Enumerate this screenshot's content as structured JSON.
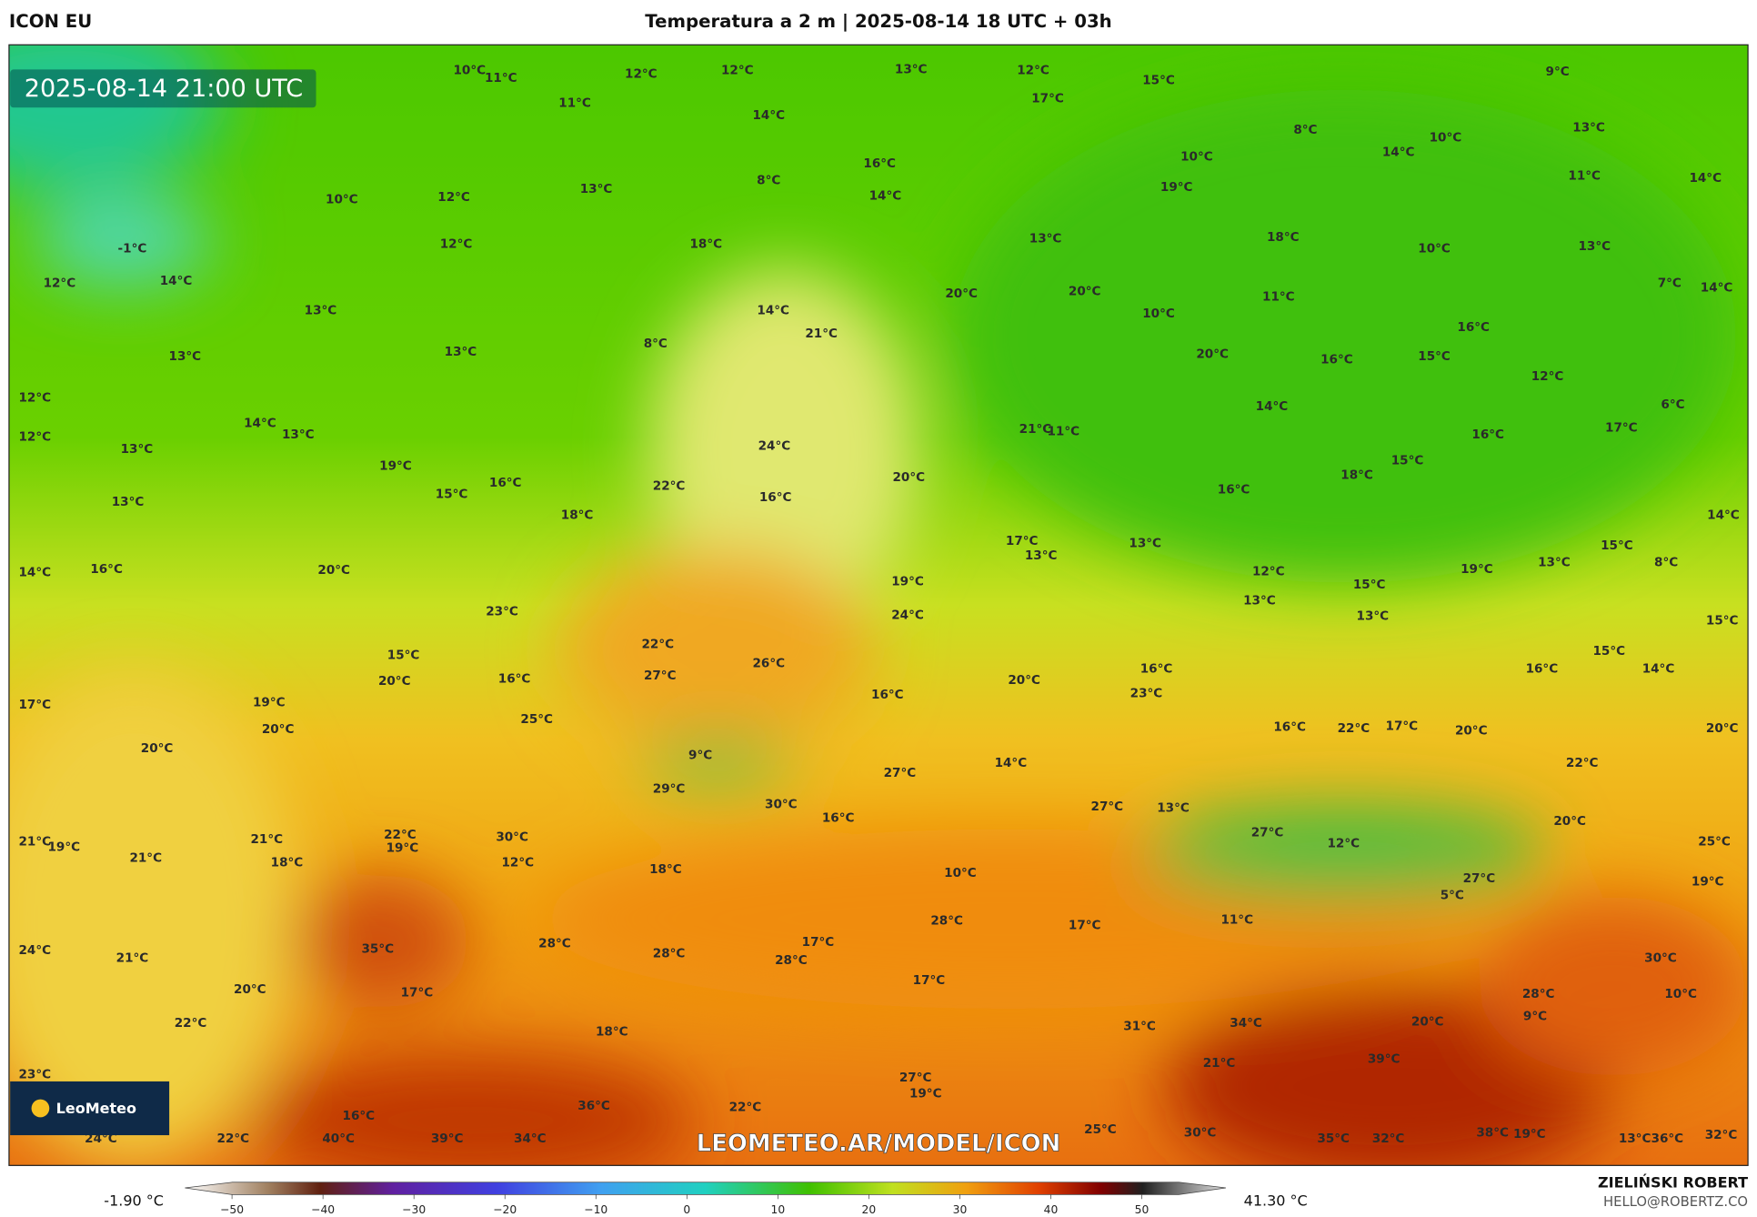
{
  "header": {
    "model": "ICON EU",
    "title": "Temperatura a 2 m | 2025-08-14 18 UTC + 03h"
  },
  "map": {
    "timestamp": "2025-08-14 21:00 UTC",
    "watermark": "LEOMETEO.AR/MODEL/ICON",
    "logo": "LeoMeteo",
    "labels": [
      "10°C",
      "11°C",
      "12°C",
      "12°C",
      "13°C",
      "12°C",
      "17°C",
      "15°C",
      "9°C",
      "11°C",
      "14°C",
      "8°C",
      "10°C",
      "13°C",
      "14°C",
      "10°C",
      "16°C",
      "8°C",
      "19°C",
      "11°C",
      "14°C",
      "13°C",
      "10°C",
      "12°C",
      "14°C",
      "-1°C",
      "12°C",
      "18°C",
      "13°C",
      "18°C",
      "10°C",
      "13°C",
      "12°C",
      "14°C",
      "20°C",
      "20°C",
      "11°C",
      "7°C",
      "14°C",
      "13°C",
      "14°C",
      "10°C",
      "21°C",
      "16°C",
      "8°C",
      "13°C",
      "13°C",
      "20°C",
      "16°C",
      "15°C",
      "12°C",
      "12°C",
      "14°C",
      "21°C",
      "11°C",
      "14°C",
      "6°C",
      "12°C",
      "13°C",
      "17°C",
      "16°C",
      "13°C",
      "24°C",
      "19°C",
      "15°C",
      "18°C",
      "20°C",
      "15°C",
      "16°C",
      "22°C",
      "16°C",
      "16°C",
      "14°C",
      "13°C",
      "18°C",
      "17°C",
      "13°C",
      "13°C",
      "15°C",
      "14°C",
      "16°C",
      "20°C",
      "19°C",
      "12°C",
      "19°C",
      "13°C",
      "8°C",
      "24°C",
      "23°C",
      "15°C",
      "13°C",
      "13°C",
      "15°C",
      "22°C",
      "15°C",
      "15°C",
      "26°C",
      "27°C",
      "16°C",
      "20°C",
      "20°C",
      "16°C",
      "16°C",
      "14°C",
      "17°C",
      "19°C",
      "16°C",
      "23°C",
      "25°C",
      "20°C",
      "16°C",
      "22°C",
      "17°C",
      "20°C",
      "20°C",
      "20°C",
      "9°C",
      "14°C",
      "27°C",
      "22°C",
      "29°C",
      "30°C",
      "27°C",
      "13°C",
      "16°C",
      "20°C",
      "27°C",
      "21°C",
      "19°C",
      "21°C",
      "22°C",
      "30°C",
      "19°C",
      "12°C",
      "25°C",
      "21°C",
      "18°C",
      "12°C",
      "18°C",
      "10°C",
      "27°C",
      "19°C",
      "5°C",
      "11°C",
      "28°C",
      "17°C",
      "35°C",
      "28°C",
      "17°C",
      "28°C",
      "24°C",
      "21°C",
      "30°C",
      "28°C",
      "17°C",
      "20°C",
      "17°C",
      "28°C",
      "10°C",
      "9°C",
      "22°C",
      "31°C",
      "34°C",
      "20°C",
      "18°C",
      "21°C",
      "39°C",
      "23°C",
      "27°C",
      "19°C",
      "22°C",
      "36°C",
      "16°C",
      "40°C",
      "39°C",
      "34°C",
      "25°C",
      "30°C",
      "35°C",
      "32°C",
      "38°C",
      "19°C",
      "13°C",
      "36°C",
      "32°C",
      "24°C",
      "22°C"
    ]
  },
  "legend": {
    "min": "-1.90 °C",
    "max": "41.30 °C",
    "ticks": [
      "−50",
      "−40",
      "−30",
      "−20",
      "−10",
      "0",
      "10",
      "20",
      "30",
      "40",
      "50"
    ]
  },
  "credits": {
    "author": "ZIELIŃSKI ROBERT",
    "email": "HELLO@ROBERTZ.CO"
  }
}
